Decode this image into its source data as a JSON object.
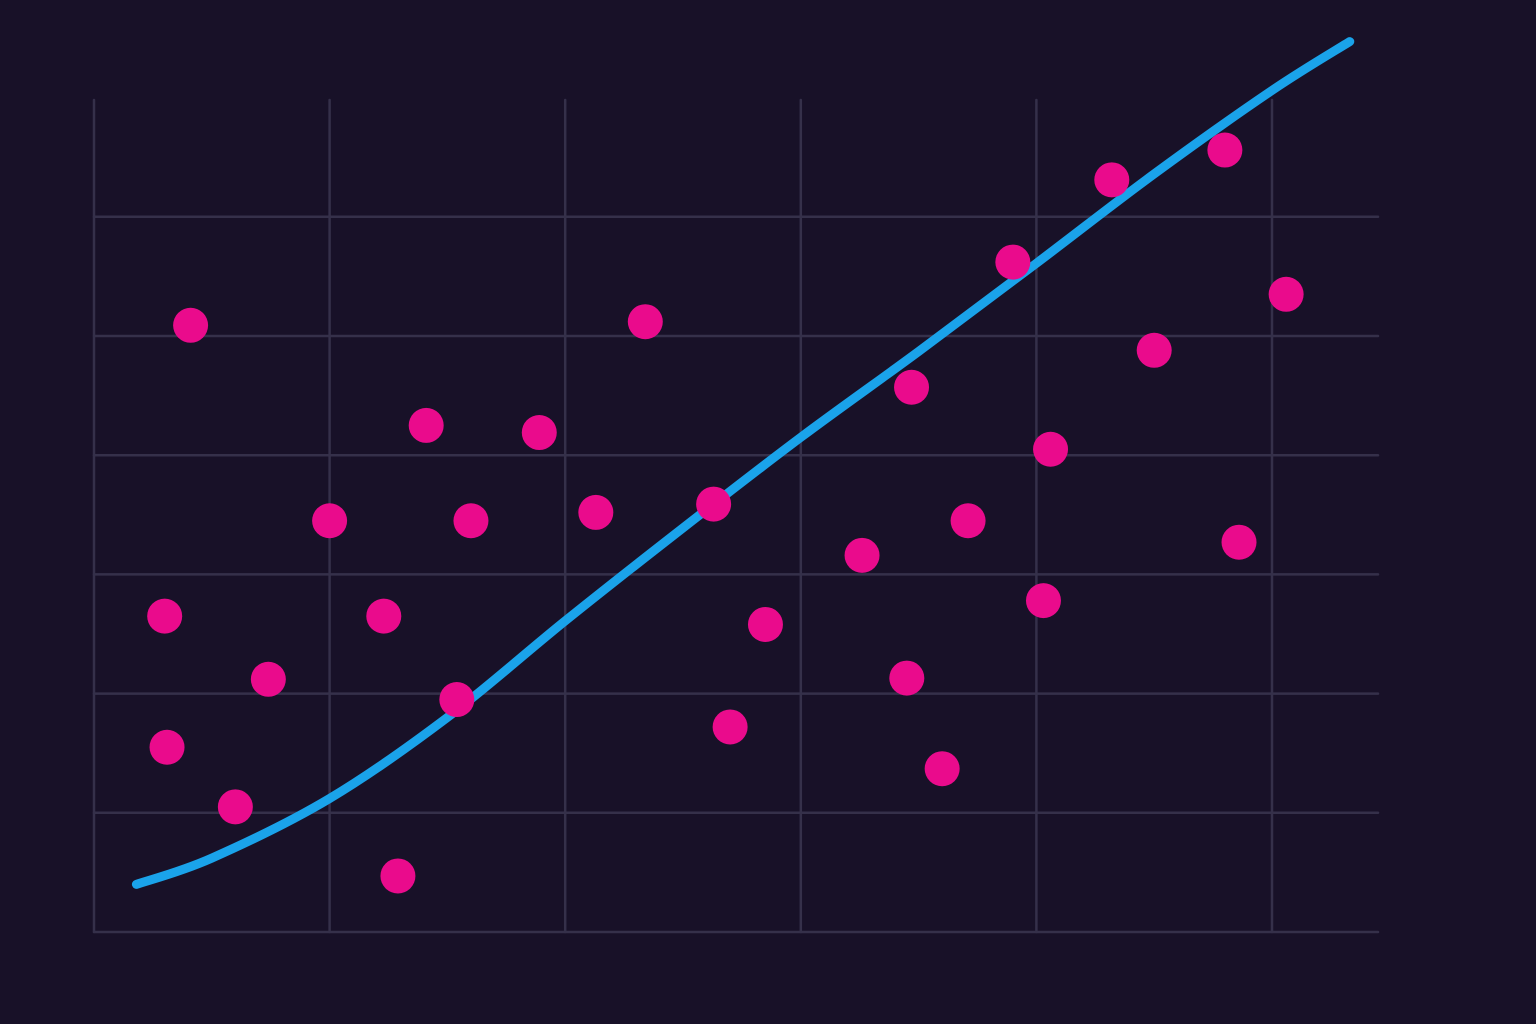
{
  "chart_data": {
    "type": "scatter",
    "title": "",
    "xlabel": "",
    "ylabel": "",
    "xlim": [
      0,
      5.45
    ],
    "ylim": [
      0,
      7
    ],
    "grid": true,
    "x_gridlines": [
      0,
      1,
      2,
      3,
      4,
      5
    ],
    "y_gridlines": [
      0,
      1,
      2,
      3,
      4,
      5,
      6
    ],
    "legend": "none",
    "colors": {
      "background": "#181128",
      "grid": "#35304a",
      "points": "#ea0b8c",
      "trend": "#1aa3ea"
    },
    "series": [
      {
        "type": "scatter",
        "points": [
          {
            "x": 0.41,
            "y": 5.09
          },
          {
            "x": 0.3,
            "y": 2.65
          },
          {
            "x": 0.31,
            "y": 1.55
          },
          {
            "x": 0.6,
            "y": 1.05
          },
          {
            "x": 0.74,
            "y": 2.12
          },
          {
            "x": 1.0,
            "y": 3.45
          },
          {
            "x": 1.23,
            "y": 2.65
          },
          {
            "x": 1.29,
            "y": 0.47
          },
          {
            "x": 1.41,
            "y": 4.25
          },
          {
            "x": 1.54,
            "y": 1.95
          },
          {
            "x": 1.6,
            "y": 3.45
          },
          {
            "x": 1.89,
            "y": 4.19
          },
          {
            "x": 2.13,
            "y": 3.52
          },
          {
            "x": 2.34,
            "y": 5.12
          },
          {
            "x": 2.63,
            "y": 3.59
          },
          {
            "x": 2.7,
            "y": 1.72
          },
          {
            "x": 2.85,
            "y": 2.58
          },
          {
            "x": 3.26,
            "y": 3.16
          },
          {
            "x": 3.45,
            "y": 2.13
          },
          {
            "x": 3.47,
            "y": 4.57
          },
          {
            "x": 3.6,
            "y": 1.37
          },
          {
            "x": 3.71,
            "y": 3.45
          },
          {
            "x": 3.9,
            "y": 5.62
          },
          {
            "x": 4.03,
            "y": 2.78
          },
          {
            "x": 4.06,
            "y": 4.05
          },
          {
            "x": 4.32,
            "y": 6.31
          },
          {
            "x": 4.5,
            "y": 4.88
          },
          {
            "x": 4.8,
            "y": 6.56
          },
          {
            "x": 4.86,
            "y": 3.27
          },
          {
            "x": 5.06,
            "y": 5.35
          }
        ]
      },
      {
        "type": "line",
        "points": [
          {
            "x": 0.18,
            "y": 0.4
          },
          {
            "x": 0.5,
            "y": 0.62
          },
          {
            "x": 1.0,
            "y": 1.12
          },
          {
            "x": 1.5,
            "y": 1.8
          },
          {
            "x": 2.0,
            "y": 2.61
          },
          {
            "x": 2.5,
            "y": 3.39
          },
          {
            "x": 3.0,
            "y": 4.15
          },
          {
            "x": 3.5,
            "y": 4.87
          },
          {
            "x": 4.0,
            "y": 5.61
          },
          {
            "x": 4.5,
            "y": 6.36
          },
          {
            "x": 5.0,
            "y": 7.06
          },
          {
            "x": 5.33,
            "y": 7.47
          }
        ]
      }
    ]
  }
}
